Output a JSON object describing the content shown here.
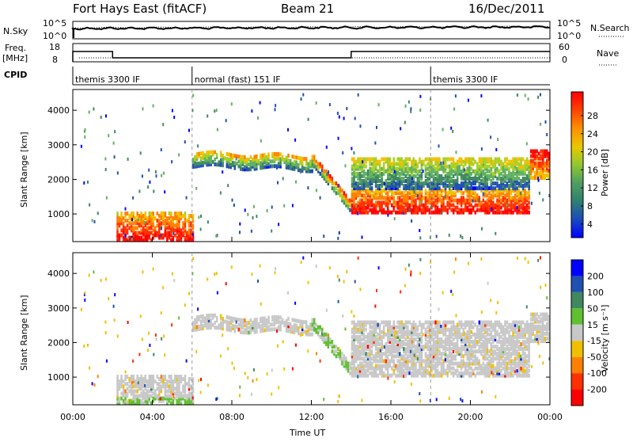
{
  "header": {
    "station": "Fort Hays East (fitACF)",
    "beam": "Beam 21",
    "date": "16/Dec/2011"
  },
  "noise_panel": {
    "left_label": "N.Sky",
    "right_label": "N.Search",
    "left_ticks": [
      "10^5",
      "10^0"
    ],
    "right_ticks": [
      "10^5",
      "10^0"
    ]
  },
  "freq_panel": {
    "left_label_1": "Freq.",
    "left_label_2": "[MHz]",
    "right_label": "Nave",
    "left_ticks": [
      "18",
      "8"
    ],
    "right_ticks": [
      "60",
      "0"
    ],
    "freq_series": [
      {
        "start": 0.0,
        "end": 2.0,
        "value": 14
      },
      {
        "start": 2.0,
        "end": 14.0,
        "value": 10
      },
      {
        "start": 14.0,
        "end": 24.0,
        "value": 14
      }
    ]
  },
  "cpid": {
    "label": "CPID",
    "segments": [
      {
        "start": 0.0,
        "name": "themis 3300 IF"
      },
      {
        "start": 6.0,
        "name": "normal (fast) 151 IF"
      },
      {
        "start": 18.0,
        "name": "themis 3300 IF"
      }
    ]
  },
  "chart_data": [
    {
      "type": "heatmap",
      "quantity": "power",
      "ylabel": "Slant Range [km]",
      "ylim": [
        200,
        4600
      ],
      "yticks": [
        "1000",
        "2000",
        "3000",
        "4000"
      ],
      "colorbar_label": "Power [dB]",
      "colorbar_ticks": [
        "28",
        "24",
        "20",
        "16",
        "12",
        "8",
        "4"
      ],
      "colors": [
        "#0000ff",
        "#2050b0",
        "#408860",
        "#60b060",
        "#a8d020",
        "#f0c000",
        "#ff8000",
        "#ff3000",
        "#ff0000"
      ],
      "echo_regions": [
        {
          "x": [
            2.2,
            6.0
          ],
          "y": [
            300,
            1100
          ],
          "level": "high"
        },
        {
          "x": [
            6.0,
            12.0
          ],
          "y": [
            2350,
            2800
          ],
          "level": "mid"
        },
        {
          "x": [
            12.0,
            14.0
          ],
          "y": [
            1000,
            2800
          ],
          "level": "mid-high"
        },
        {
          "x": [
            14.0,
            23.0
          ],
          "y": [
            1100,
            1800
          ],
          "level": "high"
        },
        {
          "x": [
            14.0,
            23.0
          ],
          "y": [
            1800,
            2700
          ],
          "level": "low-mid"
        },
        {
          "x": [
            23.0,
            24.0
          ],
          "y": [
            2100,
            2900
          ],
          "level": "high"
        }
      ]
    },
    {
      "type": "heatmap",
      "quantity": "velocity",
      "ylabel": "Slant Range [km]",
      "xlabel": "Time UT",
      "xlim": [
        0,
        24
      ],
      "xticks": [
        "00:00",
        "04:00",
        "08:00",
        "12:00",
        "16:00",
        "20:00",
        "00:00"
      ],
      "ylim": [
        200,
        4600
      ],
      "yticks": [
        "1000",
        "2000",
        "3000",
        "4000"
      ],
      "colorbar_label": "Velocity [m s⁻¹]",
      "colorbar_ticks": [
        "200",
        "100",
        "50",
        "15",
        "-15",
        "-50",
        "-100",
        "-200"
      ],
      "colors": [
        "#0000ff",
        "#2050b0",
        "#408860",
        "#60c030",
        "#c8c8c8",
        "#f0c000",
        "#ff8000",
        "#ff3000",
        "#ff0000"
      ]
    }
  ]
}
